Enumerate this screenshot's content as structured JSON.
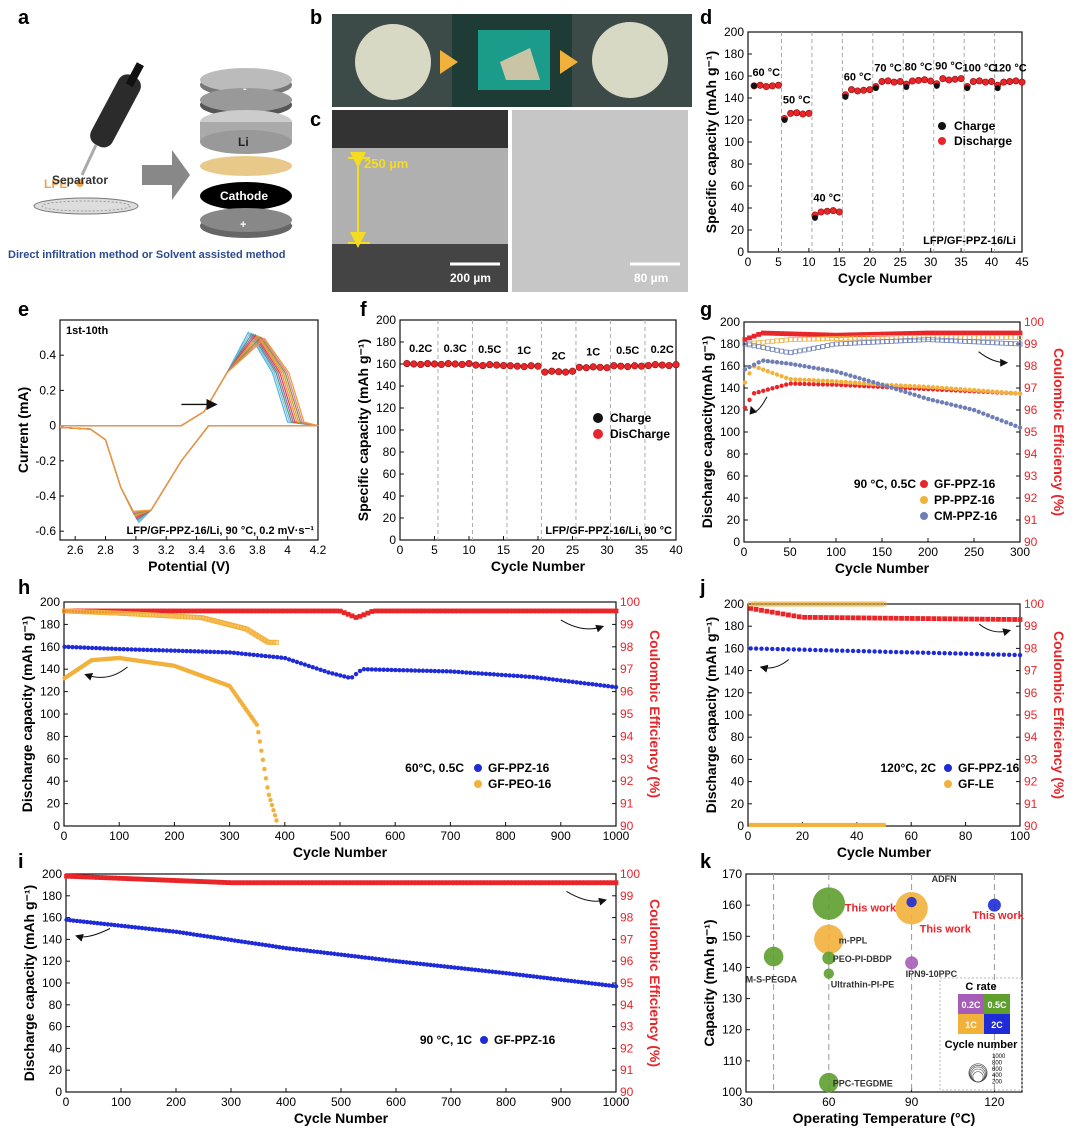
{
  "panel_letters": [
    "a",
    "b",
    "c",
    "d",
    "e",
    "f",
    "g",
    "h",
    "i",
    "j",
    "k"
  ],
  "schematic": {
    "lpe": "LPE",
    "separator": "Separator",
    "li": "Li",
    "cathode": "Cathode",
    "minus": "-",
    "plus": "+",
    "caption": "Direct infiltration method or Solvent assisted method"
  },
  "micrographs": {
    "thickness": "250 µm",
    "scale_left": "200 µm",
    "scale_right": "80 µm"
  },
  "colors": {
    "charge": "#111111",
    "discharge": "#e8262a",
    "ce": "#e8262a",
    "blue": "#1f2bd6",
    "orange": "#f2b13b",
    "slate": "#6f7fb5"
  },
  "chart_data": [
    {
      "id": "d",
      "type": "scatter",
      "xlabel": "Cycle Number",
      "ylabel": "Specific capacity (mAh g⁻¹)",
      "xlim": [
        0,
        45
      ],
      "ylim": [
        0,
        200
      ],
      "xticks": [
        0,
        5,
        10,
        15,
        20,
        25,
        30,
        35,
        40,
        45
      ],
      "yticks": [
        0,
        20,
        40,
        60,
        80,
        100,
        120,
        140,
        160,
        180,
        200
      ],
      "segments": [
        {
          "label": "60 °C",
          "cycles": [
            1,
            5
          ],
          "value": 151
        },
        {
          "label": "50 °C",
          "cycles": [
            6,
            10
          ],
          "value": 126
        },
        {
          "label": "40 °C",
          "cycles": [
            11,
            15
          ],
          "value": 37
        },
        {
          "label": "60 °C",
          "cycles": [
            16,
            20
          ],
          "value": 147
        },
        {
          "label": "70 °C",
          "cycles": [
            21,
            25
          ],
          "value": 155
        },
        {
          "label": "80 °C",
          "cycles": [
            26,
            30
          ],
          "value": 156
        },
        {
          "label": "90 °C",
          "cycles": [
            31,
            35
          ],
          "value": 157
        },
        {
          "label": "100 °C",
          "cycles": [
            36,
            40
          ],
          "value": 155
        },
        {
          "label": "120 °C",
          "cycles": [
            41,
            45
          ],
          "value": 155
        }
      ],
      "series": [
        {
          "name": "Charge"
        },
        {
          "name": "Discharge"
        }
      ],
      "annotation": "LFP/GF-PPZ-16/Li",
      "legend_position": "right"
    },
    {
      "id": "e",
      "type": "line",
      "xlabel": "Potential (V)",
      "ylabel": "Current (mA)",
      "xlim": [
        2.5,
        4.2
      ],
      "ylim": [
        -0.65,
        0.6
      ],
      "xticks": [
        2.6,
        2.8,
        3.0,
        3.2,
        3.4,
        3.6,
        3.8,
        4.0,
        4.2
      ],
      "yticks": [
        -0.6,
        -0.4,
        -0.2,
        0.0,
        0.2,
        0.4
      ],
      "curves": 10,
      "top_label": "1st-10th",
      "annotation": "LFP/GF-PPZ-16/Li, 90 °C, 0.2 mV·s⁻¹"
    },
    {
      "id": "f",
      "type": "scatter",
      "xlabel": "Cycle Number",
      "ylabel": "Specific capacity (mAh g⁻¹)",
      "xlim": [
        0,
        40
      ],
      "ylim": [
        0,
        200
      ],
      "xticks": [
        0,
        5,
        10,
        15,
        20,
        25,
        30,
        35,
        40
      ],
      "yticks": [
        0,
        20,
        40,
        60,
        80,
        100,
        120,
        140,
        160,
        180,
        200
      ],
      "segments": [
        {
          "label": "0.2C",
          "cycles": [
            1,
            5
          ],
          "value": 160
        },
        {
          "label": "0.3C",
          "cycles": [
            6,
            10
          ],
          "value": 160
        },
        {
          "label": "0.5C",
          "cycles": [
            11,
            15
          ],
          "value": 159
        },
        {
          "label": "1C",
          "cycles": [
            16,
            20
          ],
          "value": 158
        },
        {
          "label": "2C",
          "cycles": [
            21,
            25
          ],
          "value": 153
        },
        {
          "label": "1C",
          "cycles": [
            26,
            30
          ],
          "value": 157
        },
        {
          "label": "0.5C",
          "cycles": [
            31,
            35
          ],
          "value": 158
        },
        {
          "label": "0.2C",
          "cycles": [
            36,
            40
          ],
          "value": 159
        }
      ],
      "series": [
        {
          "name": "Charge"
        },
        {
          "name": "DisCharge"
        }
      ],
      "annotation": "LFP/GF-PPZ-16/Li, 90 °C"
    },
    {
      "id": "g",
      "type": "scatter",
      "xlabel": "Cycle Number",
      "ylabel": "Discharge capacity(mAh g⁻¹)",
      "y2label": "Coulombic Efficiency (%)",
      "xlim": [
        0,
        300
      ],
      "ylim": [
        0,
        200
      ],
      "y2lim": [
        90,
        100
      ],
      "xticks": [
        0,
        50,
        100,
        150,
        200,
        250,
        300
      ],
      "yticks": [
        0,
        20,
        40,
        60,
        80,
        100,
        120,
        140,
        160,
        180,
        200
      ],
      "y2ticks": [
        90,
        91,
        92,
        93,
        94,
        95,
        96,
        97,
        98,
        99,
        100
      ],
      "condition": "90 °C, 0.5C",
      "series": [
        {
          "name": "GF-PPZ-16",
          "capacity": [
            [
              1,
              122
            ],
            [
              10,
              135
            ],
            [
              50,
              144
            ],
            [
              100,
              143
            ],
            [
              150,
              141
            ],
            [
              200,
              139
            ],
            [
              250,
              137
            ],
            [
              300,
              135
            ]
          ],
          "ce": [
            [
              1,
              99.2
            ],
            [
              20,
              99.5
            ],
            [
              100,
              99.4
            ],
            [
              200,
              99.5
            ],
            [
              300,
              99.5
            ]
          ]
        },
        {
          "name": "PP-PPZ-16",
          "capacity": [
            [
              1,
              145
            ],
            [
              10,
              160
            ],
            [
              50,
              148
            ],
            [
              100,
              146
            ],
            [
              150,
              143
            ],
            [
              200,
              141
            ],
            [
              250,
              138
            ],
            [
              300,
              135
            ]
          ],
          "ce": [
            [
              1,
              99.0
            ],
            [
              50,
              99.2
            ],
            [
              150,
              99.3
            ],
            [
              300,
              99.3
            ]
          ]
        },
        {
          "name": "CM-PPZ-16",
          "capacity": [
            [
              1,
              157
            ],
            [
              20,
              165
            ],
            [
              50,
              162
            ],
            [
              100,
              155
            ],
            [
              150,
              143
            ],
            [
              200,
              130
            ],
            [
              250,
              120
            ],
            [
              300,
              104
            ]
          ],
          "ce": [
            [
              1,
              99.0
            ],
            [
              50,
              98.6
            ],
            [
              100,
              99.0
            ],
            [
              200,
              99.2
            ],
            [
              300,
              99.0
            ]
          ]
        }
      ]
    },
    {
      "id": "h",
      "type": "scatter",
      "xlabel": "Cycle Number",
      "ylabel": "Discharge capacity (mAh g⁻¹)",
      "y2label": "Coulombic Efficiency (%)",
      "xlim": [
        0,
        1000
      ],
      "ylim": [
        0,
        200
      ],
      "y2lim": [
        90,
        100
      ],
      "xticks": [
        0,
        100,
        200,
        300,
        400,
        500,
        600,
        700,
        800,
        900,
        1000
      ],
      "yticks": [
        0,
        20,
        40,
        60,
        80,
        100,
        120,
        140,
        160,
        180,
        200
      ],
      "y2ticks": [
        90,
        91,
        92,
        93,
        94,
        95,
        96,
        97,
        98,
        99,
        100
      ],
      "condition": "60°C, 0.5C",
      "series": [
        {
          "name": "GF-PPZ-16",
          "capacity": [
            [
              1,
              160
            ],
            [
              100,
              158
            ],
            [
              300,
              155
            ],
            [
              400,
              150
            ],
            [
              480,
              137
            ],
            [
              520,
              132
            ],
            [
              540,
              140
            ],
            [
              700,
              138
            ],
            [
              850,
              133
            ],
            [
              1000,
              124
            ]
          ],
          "ce": [
            [
              1,
              99.6
            ],
            [
              500,
              99.6
            ],
            [
              530,
              99.3
            ],
            [
              560,
              99.6
            ],
            [
              1000,
              99.6
            ]
          ]
        },
        {
          "name": "GF-PEO-16",
          "capacity": [
            [
              1,
              132
            ],
            [
              50,
              148
            ],
            [
              100,
              150
            ],
            [
              200,
              143
            ],
            [
              300,
              125
            ],
            [
              350,
              90
            ],
            [
              370,
              30
            ],
            [
              385,
              5
            ]
          ],
          "ce": [
            [
              1,
              99.6
            ],
            [
              100,
              99.5
            ],
            [
              250,
              99.3
            ],
            [
              330,
              98.8
            ],
            [
              370,
              98.2
            ]
          ]
        }
      ]
    },
    {
      "id": "j",
      "type": "scatter",
      "xlabel": "Cycle Number",
      "ylabel": "Discharge capacity (mAh g⁻¹)",
      "y2label": "Coulombic Efficiency (%)",
      "xlim": [
        0,
        100
      ],
      "ylim": [
        0,
        200
      ],
      "y2lim": [
        90,
        100
      ],
      "xticks": [
        0,
        20,
        40,
        60,
        80,
        100
      ],
      "yticks": [
        0,
        20,
        40,
        60,
        80,
        100,
        120,
        140,
        160,
        180,
        200
      ],
      "y2ticks": [
        90,
        91,
        92,
        93,
        94,
        95,
        96,
        97,
        98,
        99,
        100
      ],
      "condition": "120°C, 2C",
      "series": [
        {
          "name": "GF-PPZ-16",
          "capacity": [
            [
              1,
              160
            ],
            [
              50,
              157
            ],
            [
              100,
              154
            ]
          ],
          "ce": [
            [
              1,
              99.8
            ],
            [
              20,
              99.4
            ],
            [
              100,
              99.3
            ]
          ]
        },
        {
          "name": "GF-LE",
          "capacity": [
            [
              1,
              1
            ],
            [
              50,
              1
            ]
          ],
          "ce": [
            [
              1,
              100
            ],
            [
              50,
              100
            ]
          ]
        }
      ]
    },
    {
      "id": "i",
      "type": "scatter",
      "xlabel": "Cycle Number",
      "ylabel": "Discharge capacity (mAh g⁻¹)",
      "y2label": "Coulombic Efficiency (%)",
      "xlim": [
        0,
        1000
      ],
      "ylim": [
        0,
        200
      ],
      "y2lim": [
        90,
        100
      ],
      "xticks": [
        0,
        100,
        200,
        300,
        400,
        500,
        600,
        700,
        800,
        900,
        1000
      ],
      "yticks": [
        0,
        20,
        40,
        60,
        80,
        100,
        120,
        140,
        160,
        180,
        200
      ],
      "y2ticks": [
        90,
        91,
        92,
        93,
        94,
        95,
        96,
        97,
        98,
        99,
        100
      ],
      "condition": "90 °C, 1C",
      "series": [
        {
          "name": "GF-PPZ-16",
          "capacity": [
            [
              1,
              158
            ],
            [
              200,
              147
            ],
            [
              400,
              132
            ],
            [
              600,
              120
            ],
            [
              800,
              109
            ],
            [
              1000,
              97
            ]
          ],
          "ce": [
            [
              1,
              99.9
            ],
            [
              300,
              99.6
            ],
            [
              1000,
              99.6
            ]
          ]
        }
      ]
    },
    {
      "id": "k",
      "type": "scatter",
      "xlabel": "Operating Temperature (°C)",
      "ylabel": "Capacity (mAh g⁻¹)",
      "xlim": [
        30,
        130
      ],
      "ylim": [
        100,
        170
      ],
      "xticks": [
        30,
        60,
        90,
        120
      ],
      "yticks": [
        100,
        110,
        120,
        130,
        140,
        150,
        160,
        170
      ],
      "points": [
        {
          "label": "This work",
          "x": 60,
          "y": 160.5,
          "rate": "0.5C",
          "cycles": 1000,
          "highlight": true
        },
        {
          "label": "This work",
          "x": 90,
          "y": 159,
          "rate": "1C",
          "cycles": 1000,
          "highlight": true
        },
        {
          "label": "This work",
          "x": 120,
          "y": 160,
          "rate": "2C",
          "cycles": 100,
          "highlight": true
        },
        {
          "label": "ADFN",
          "x": 90,
          "y": 161,
          "rate": "2C",
          "cycles": 50
        },
        {
          "label": "m-PPL",
          "x": 60,
          "y": 149,
          "rate": "1C",
          "cycles": 800
        },
        {
          "label": "M-S-PEGDA",
          "x": 40,
          "y": 143.5,
          "rate": "0.5C",
          "cycles": 300
        },
        {
          "label": "PEO-PI-DBDP",
          "x": 60,
          "y": 143,
          "rate": "0.5C",
          "cycles": 100
        },
        {
          "label": "IPN9-10PPC",
          "x": 90,
          "y": 141.5,
          "rate": "0.2C",
          "cycles": 100
        },
        {
          "label": "Ultrathin-PI-PE",
          "x": 60,
          "y": 138,
          "rate": "0.5C",
          "cycles": 50
        },
        {
          "label": "PPC-TEGDME",
          "x": 60,
          "y": 103,
          "rate": "0.5C",
          "cycles": 300
        }
      ],
      "legend_title": "C rate",
      "rates": [
        "0.2C",
        "0.5C",
        "1C",
        "2C"
      ],
      "cycle_title": "Cycle number",
      "cycle_values": [
        1000,
        800,
        600,
        400,
        200
      ]
    }
  ]
}
